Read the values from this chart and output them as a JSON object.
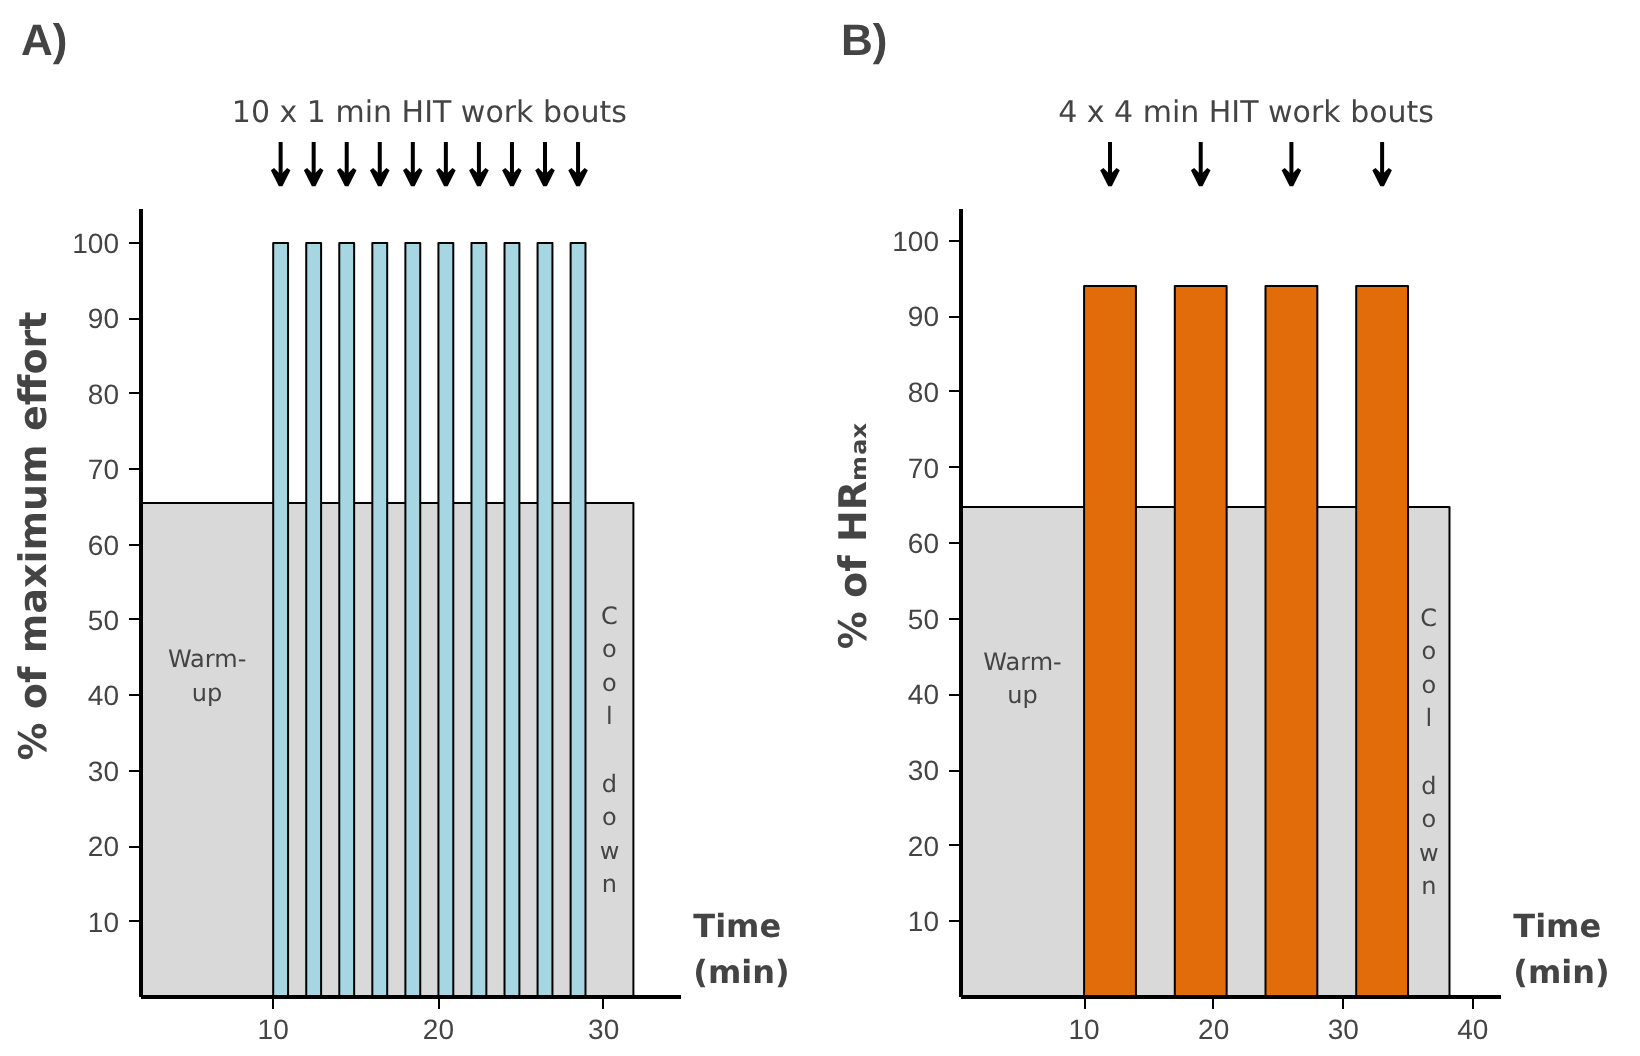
{
  "chart_data": [
    {
      "type": "area",
      "title": "A)",
      "subtitle": "10 x 1 min HIT work bouts",
      "xlabel": "Time\n(min)",
      "ylabel": "% of maximum effort",
      "xlim": [
        2,
        34.7
      ],
      "ylim": [
        0,
        104.5
      ],
      "xticks": [
        10,
        20,
        30
      ],
      "yticks": [
        10,
        20,
        30,
        40,
        50,
        60,
        70,
        80,
        90,
        100
      ],
      "grid": false,
      "series": [
        {
          "color": "#d9d9d9",
          "x": [
            2,
            2,
            31.8,
            31.8
          ],
          "values": [
            0,
            65.5,
            65.5,
            0
          ]
        },
        {
          "color": "#a5d6e2",
          "x": [
            10,
            10,
            10.9,
            10.9,
            12,
            12,
            12.9,
            12.9,
            14,
            14,
            14.9,
            14.9,
            16,
            16,
            16.9,
            16.9,
            18,
            18,
            18.9,
            18.9,
            20,
            20,
            20.9,
            20.9,
            22,
            22,
            22.9,
            22.9,
            24,
            24,
            24.9,
            24.9,
            26,
            26,
            26.9,
            26.9,
            28,
            28,
            28.9,
            28.9
          ],
          "values": [
            0,
            100,
            100,
            0,
            0,
            100,
            100,
            0,
            0,
            100,
            100,
            0,
            0,
            100,
            100,
            0,
            0,
            100,
            100,
            0,
            0,
            100,
            100,
            0,
            0,
            100,
            100,
            0,
            0,
            100,
            100,
            0,
            0,
            100,
            100,
            0,
            0,
            100,
            100,
            0
          ]
        }
      ],
      "annotations": [
        "Warm-\nup",
        "Cool down"
      ]
    },
    {
      "type": "area",
      "title": "B)",
      "subtitle": "4 x 4 min HIT work bouts",
      "xlabel": "Time\n(min)",
      "ylabel": "% of HRₘₐₓ",
      "xlim": [
        0.5,
        42.2
      ],
      "ylim": [
        0,
        104.2
      ],
      "xticks": [
        10,
        20,
        30,
        40
      ],
      "yticks": [
        10,
        20,
        30,
        40,
        50,
        60,
        70,
        80,
        90,
        100
      ],
      "grid": false,
      "series": [
        {
          "color": "#d9d9d9",
          "x": [
            0.5,
            0.5,
            38.2,
            38.2
          ],
          "values": [
            0,
            64.8,
            64.8,
            0
          ]
        },
        {
          "color": "#e36c0a",
          "x": [
            10,
            10,
            14,
            14,
            17,
            17,
            21,
            21,
            24,
            24,
            28,
            28,
            31,
            31,
            35,
            35
          ],
          "values": [
            0,
            94,
            94,
            0,
            0,
            94,
            94,
            0,
            0,
            94,
            94,
            0,
            0,
            94,
            94,
            0
          ]
        }
      ],
      "annotations": [
        "Warm-\nup",
        "Cool down"
      ]
    }
  ]
}
